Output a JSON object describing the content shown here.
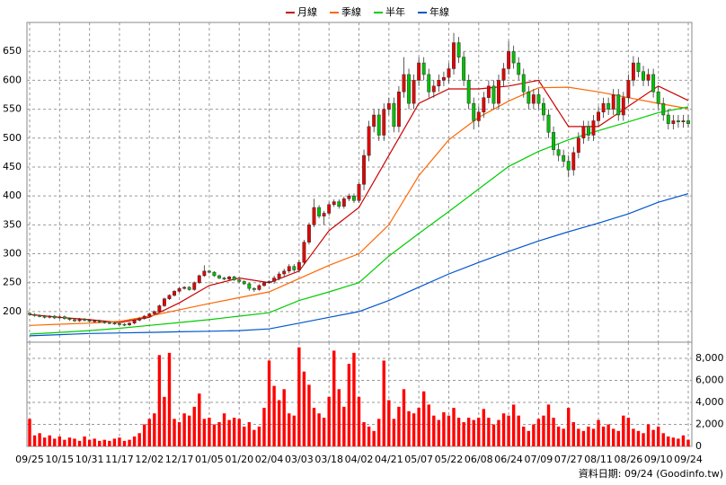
{
  "chart_data": {
    "type": "candlestick",
    "categories": [
      "09/25",
      null,
      null,
      null,
      null,
      null,
      "10/15",
      null,
      null,
      null,
      null,
      null,
      "10/31",
      null,
      null,
      null,
      null,
      null,
      "11/17",
      null,
      null,
      null,
      null,
      null,
      "12/02",
      null,
      null,
      null,
      null,
      null,
      "12/17",
      null,
      null,
      null,
      null,
      null,
      "01/05",
      null,
      null,
      null,
      null,
      null,
      "01/20",
      null,
      null,
      null,
      null,
      null,
      "02/04",
      null,
      null,
      null,
      null,
      null,
      "03/03",
      null,
      null,
      null,
      null,
      null,
      "03/18",
      null,
      null,
      null,
      null,
      null,
      "04/02",
      null,
      null,
      null,
      null,
      null,
      "04/21",
      null,
      null,
      null,
      null,
      null,
      "05/07",
      null,
      null,
      null,
      null,
      null,
      "05/22",
      null,
      null,
      null,
      null,
      null,
      "06/08",
      null,
      null,
      null,
      null,
      null,
      "06/24",
      null,
      null,
      null,
      null,
      null,
      "07/09",
      null,
      null,
      null,
      null,
      null,
      "07/27",
      null,
      null,
      null,
      null,
      null,
      "08/11",
      null,
      null,
      null,
      null,
      null,
      "08/26",
      null,
      null,
      null,
      null,
      null,
      "09/10",
      null,
      null,
      null,
      null,
      null,
      "09/24"
    ],
    "open": [
      197,
      195,
      193,
      192,
      190,
      192,
      189,
      191,
      188,
      186,
      184,
      187,
      185,
      183,
      184,
      182,
      181,
      180,
      179,
      178,
      177,
      180,
      185,
      188,
      192,
      196,
      200,
      210,
      222,
      228,
      235,
      240,
      242,
      238,
      250,
      262,
      270,
      268,
      262,
      258,
      256,
      260,
      255,
      252,
      248,
      240,
      238,
      245,
      250,
      252,
      258,
      265,
      270,
      278,
      272,
      285,
      320,
      350,
      380,
      365,
      370,
      385,
      390,
      382,
      395,
      400,
      392,
      420,
      470,
      520,
      540,
      505,
      550,
      560,
      520,
      580,
      610,
      560,
      600,
      630,
      610,
      580,
      590,
      600,
      605,
      620,
      665,
      640,
      600,
      560,
      530,
      545,
      570,
      590,
      560,
      600,
      620,
      650,
      630,
      610,
      580,
      560,
      575,
      560,
      540,
      510,
      480,
      470,
      460,
      445,
      475,
      500,
      520,
      505,
      530,
      545,
      560,
      550,
      575,
      540,
      570,
      600,
      630,
      615,
      600,
      610,
      580,
      560,
      540,
      525,
      530,
      528,
      530
    ],
    "high": [
      199,
      197,
      195,
      194,
      194,
      194,
      193,
      193,
      190,
      188,
      189,
      189,
      187,
      186,
      186,
      184,
      183,
      182,
      181,
      180,
      182,
      187,
      190,
      194,
      198,
      202,
      212,
      224,
      230,
      237,
      242,
      244,
      244,
      252,
      264,
      280,
      272,
      270,
      264,
      260,
      262,
      262,
      257,
      254,
      250,
      242,
      247,
      252,
      254,
      262,
      269,
      274,
      282,
      282,
      289,
      324,
      354,
      395,
      384,
      374,
      389,
      394,
      394,
      399,
      404,
      404,
      424,
      480,
      530,
      550,
      550,
      560,
      570,
      570,
      590,
      640,
      620,
      610,
      640,
      640,
      620,
      600,
      610,
      615,
      630,
      682,
      675,
      650,
      610,
      570,
      555,
      580,
      600,
      600,
      610,
      630,
      668,
      660,
      640,
      620,
      590,
      585,
      585,
      570,
      550,
      520,
      490,
      480,
      470,
      485,
      510,
      530,
      530,
      540,
      555,
      570,
      570,
      585,
      585,
      580,
      610,
      642,
      640,
      625,
      620,
      620,
      590,
      570,
      550,
      540,
      540,
      540,
      540
    ],
    "low": [
      193,
      191,
      190,
      188,
      188,
      187,
      187,
      186,
      184,
      182,
      182,
      183,
      181,
      181,
      180,
      179,
      178,
      177,
      176,
      175,
      175,
      178,
      183,
      186,
      190,
      194,
      198,
      208,
      220,
      226,
      233,
      238,
      236,
      236,
      248,
      260,
      266,
      260,
      256,
      254,
      254,
      253,
      250,
      246,
      236,
      234,
      236,
      243,
      248,
      248,
      254,
      261,
      266,
      268,
      268,
      281,
      316,
      346,
      361,
      350,
      366,
      381,
      378,
      378,
      391,
      388,
      388,
      410,
      460,
      510,
      495,
      495,
      540,
      510,
      510,
      570,
      550,
      550,
      590,
      600,
      570,
      570,
      580,
      590,
      595,
      610,
      630,
      590,
      550,
      515,
      520,
      535,
      560,
      550,
      550,
      590,
      610,
      620,
      600,
      570,
      550,
      550,
      550,
      530,
      500,
      470,
      460,
      450,
      432,
      435,
      465,
      490,
      495,
      495,
      520,
      535,
      540,
      540,
      530,
      530,
      560,
      590,
      605,
      590,
      590,
      570,
      550,
      530,
      515,
      515,
      518,
      518,
      518
    ],
    "close": [
      195,
      193,
      192,
      190,
      192,
      189,
      191,
      188,
      186,
      184,
      187,
      185,
      183,
      184,
      182,
      181,
      180,
      179,
      178,
      177,
      180,
      185,
      188,
      192,
      196,
      200,
      210,
      222,
      228,
      235,
      240,
      242,
      238,
      250,
      262,
      270,
      268,
      262,
      258,
      256,
      260,
      255,
      252,
      248,
      240,
      238,
      245,
      250,
      252,
      258,
      265,
      270,
      278,
      272,
      285,
      320,
      350,
      380,
      365,
      370,
      385,
      390,
      382,
      395,
      400,
      392,
      420,
      470,
      520,
      540,
      505,
      550,
      560,
      520,
      580,
      610,
      560,
      600,
      630,
      610,
      580,
      590,
      600,
      605,
      620,
      665,
      640,
      600,
      560,
      530,
      545,
      570,
      590,
      560,
      600,
      620,
      650,
      630,
      610,
      580,
      560,
      575,
      560,
      540,
      510,
      480,
      470,
      460,
      445,
      475,
      500,
      520,
      505,
      530,
      545,
      560,
      550,
      575,
      540,
      570,
      600,
      630,
      615,
      600,
      610,
      580,
      560,
      540,
      525,
      530,
      528,
      530,
      525
    ],
    "up_color": "#e60000",
    "down_color": "#00c000",
    "ylim": [
      147,
      700
    ],
    "yticks": [
      200,
      250,
      300,
      350,
      400,
      450,
      500,
      550,
      600,
      650
    ],
    "grid": true,
    "moving_averages": [
      {
        "name": "月線",
        "color": "#cc0000",
        "x": [
          0,
          6,
          12,
          18,
          24,
          30,
          36,
          42,
          48,
          54,
          60,
          66,
          72,
          78,
          84,
          90,
          96,
          102,
          108,
          114,
          120,
          126,
          132
        ],
        "values": [
          195,
          190,
          186,
          181,
          190,
          215,
          245,
          258,
          250,
          270,
          340,
          380,
          470,
          560,
          585,
          585,
          590,
          600,
          520,
          520,
          555,
          590,
          565
        ]
      },
      {
        "name": "季線",
        "color": "#ff6600",
        "x": [
          0,
          6,
          12,
          18,
          24,
          30,
          36,
          42,
          48,
          54,
          60,
          66,
          72,
          78,
          84,
          90,
          96,
          102,
          108,
          114,
          120,
          126,
          132
        ],
        "values": [
          176,
          178,
          180,
          183,
          192,
          203,
          214,
          224,
          234,
          257,
          280,
          300,
          350,
          435,
          497,
          536,
          564,
          587,
          588,
          580,
          570,
          560,
          551
        ]
      },
      {
        "name": "半年",
        "color": "#00cc00",
        "x": [
          0,
          6,
          12,
          18,
          24,
          30,
          36,
          42,
          48,
          54,
          60,
          66,
          72,
          78,
          84,
          90,
          96,
          102,
          108,
          114,
          120,
          126,
          132
        ],
        "values": [
          161,
          164,
          167,
          171,
          176,
          181,
          186,
          192,
          198,
          219,
          234,
          250,
          296,
          335,
          373,
          412,
          451,
          477,
          497,
          513,
          528,
          544,
          554
        ]
      },
      {
        "name": "年線",
        "color": "#0055cc",
        "x": [
          0,
          6,
          12,
          18,
          24,
          30,
          36,
          42,
          48,
          54,
          60,
          66,
          72,
          78,
          84,
          90,
          96,
          102,
          108,
          114,
          120,
          126,
          132
        ],
        "values": [
          158,
          160,
          162,
          163,
          164,
          165,
          166,
          167,
          170,
          180,
          190,
          200,
          219,
          242,
          265,
          285,
          304,
          322,
          338,
          353,
          369,
          389,
          404
        ]
      }
    ],
    "volume": {
      "color": "#ff0000",
      "ylim": [
        0,
        9470
      ],
      "yticks": [
        0,
        {
          "value": 2000,
          "label": "2,000"
        },
        {
          "value": 4000,
          "label": "4,000"
        },
        {
          "value": 6000,
          "label": "6,000"
        },
        {
          "value": 8000,
          "label": "8,000"
        }
      ],
      "values": [
        2500,
        1000,
        1200,
        800,
        1000,
        700,
        900,
        600,
        800,
        700,
        500,
        900,
        600,
        700,
        500,
        600,
        500,
        700,
        800,
        500,
        600,
        900,
        1200,
        2000,
        2500,
        3000,
        8300,
        4500,
        8500,
        2500,
        2200,
        3000,
        2800,
        3600,
        4800,
        2500,
        2600,
        2000,
        2200,
        3000,
        2400,
        2600,
        2500,
        1800,
        2200,
        1500,
        1800,
        3500,
        7800,
        5500,
        4200,
        5200,
        3000,
        2800,
        9000,
        6800,
        5600,
        3500,
        3000,
        2600,
        4500,
        8700,
        5200,
        3600,
        7500,
        8500,
        4500,
        2200,
        1800,
        1400,
        2500,
        7800,
        4200,
        2500,
        3600,
        5200,
        3200,
        3000,
        3500,
        5000,
        3800,
        2800,
        2400,
        3100,
        2800,
        3500,
        2600,
        2200,
        2600,
        2400,
        2600,
        3400,
        2600,
        2000,
        2400,
        3000,
        2800,
        3800,
        2800,
        1800,
        1400,
        2000,
        2500,
        2800,
        3800,
        2600,
        1800,
        1600,
        3500,
        2200,
        1600,
        1400,
        1800,
        1600,
        2400,
        1800,
        2000,
        1600,
        1400,
        2800,
        2600,
        1600,
        1400,
        1200,
        2000,
        1500,
        1800,
        1200,
        900,
        800,
        700,
        1000,
        600
      ]
    },
    "footer": "資料日期: 09/24 (Goodinfo.tw)"
  }
}
